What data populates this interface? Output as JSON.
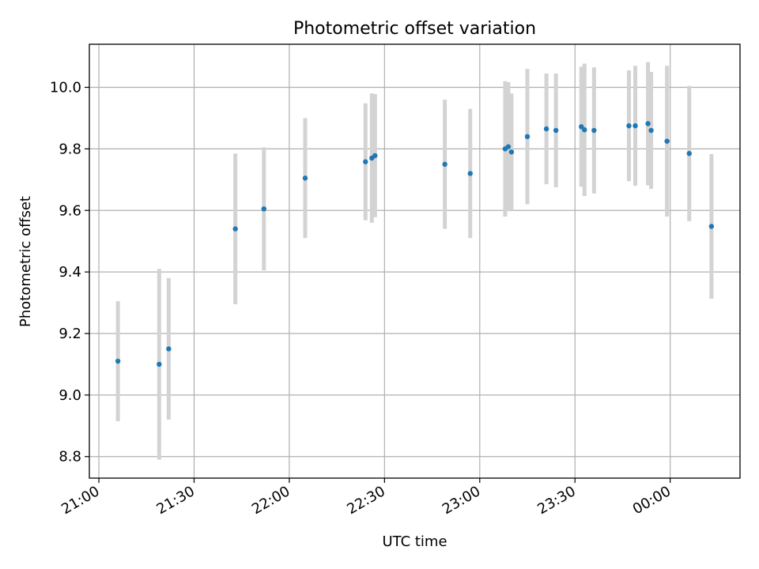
{
  "chart_data": {
    "type": "scatter",
    "title": "Photometric offset variation",
    "xlabel": "UTC time",
    "ylabel": "Photometric offset",
    "x_ticks": [
      "21:00",
      "21:30",
      "22:00",
      "22:30",
      "23:00",
      "23:30",
      "00:00"
    ],
    "y_ticks": [
      "8.8",
      "9.0",
      "9.2",
      "9.4",
      "9.6",
      "9.8",
      "10.0"
    ],
    "xlim": [
      "20:57",
      "00:22"
    ],
    "ylim": [
      8.73,
      10.14
    ],
    "grid": true,
    "colors": {
      "point": "#1f77b4",
      "errorbar": "#d3d3d3",
      "grid": "#b0b0b0"
    },
    "series": [
      {
        "points": [
          {
            "x": "21:06",
            "y": 9.11,
            "err": 0.195
          },
          {
            "x": "21:19",
            "y": 9.1,
            "err": 0.31
          },
          {
            "x": "21:22",
            "y": 9.15,
            "err": 0.23
          },
          {
            "x": "21:43",
            "y": 9.54,
            "err": 0.245
          },
          {
            "x": "21:52",
            "y": 9.605,
            "err": 0.2
          },
          {
            "x": "22:05",
            "y": 9.705,
            "err": 0.195
          },
          {
            "x": "22:24",
            "y": 9.758,
            "err": 0.19
          },
          {
            "x": "22:26",
            "y": 9.77,
            "err": 0.21
          },
          {
            "x": "22:27",
            "y": 9.778,
            "err": 0.2
          },
          {
            "x": "22:49",
            "y": 9.75,
            "err": 0.21
          },
          {
            "x": "22:57",
            "y": 9.72,
            "err": 0.21
          },
          {
            "x": "23:08",
            "y": 9.8,
            "err": 0.22
          },
          {
            "x": "23:09",
            "y": 9.807,
            "err": 0.21
          },
          {
            "x": "23:10",
            "y": 9.79,
            "err": 0.19
          },
          {
            "x": "23:15",
            "y": 9.84,
            "err": 0.22
          },
          {
            "x": "23:21",
            "y": 9.865,
            "err": 0.18
          },
          {
            "x": "23:24",
            "y": 9.86,
            "err": 0.185
          },
          {
            "x": "23:32",
            "y": 9.872,
            "err": 0.195
          },
          {
            "x": "23:33",
            "y": 9.862,
            "err": 0.215
          },
          {
            "x": "23:36",
            "y": 9.86,
            "err": 0.205
          },
          {
            "x": "23:47",
            "y": 9.875,
            "err": 0.18
          },
          {
            "x": "23:49",
            "y": 9.875,
            "err": 0.195
          },
          {
            "x": "23:53",
            "y": 9.882,
            "err": 0.2
          },
          {
            "x": "23:54",
            "y": 9.86,
            "err": 0.19
          },
          {
            "x": "23:59",
            "y": 9.825,
            "err": 0.245
          },
          {
            "x": "00:06",
            "y": 9.785,
            "err": 0.22
          },
          {
            "x": "00:13",
            "y": 9.548,
            "err": 0.235
          }
        ]
      }
    ]
  }
}
